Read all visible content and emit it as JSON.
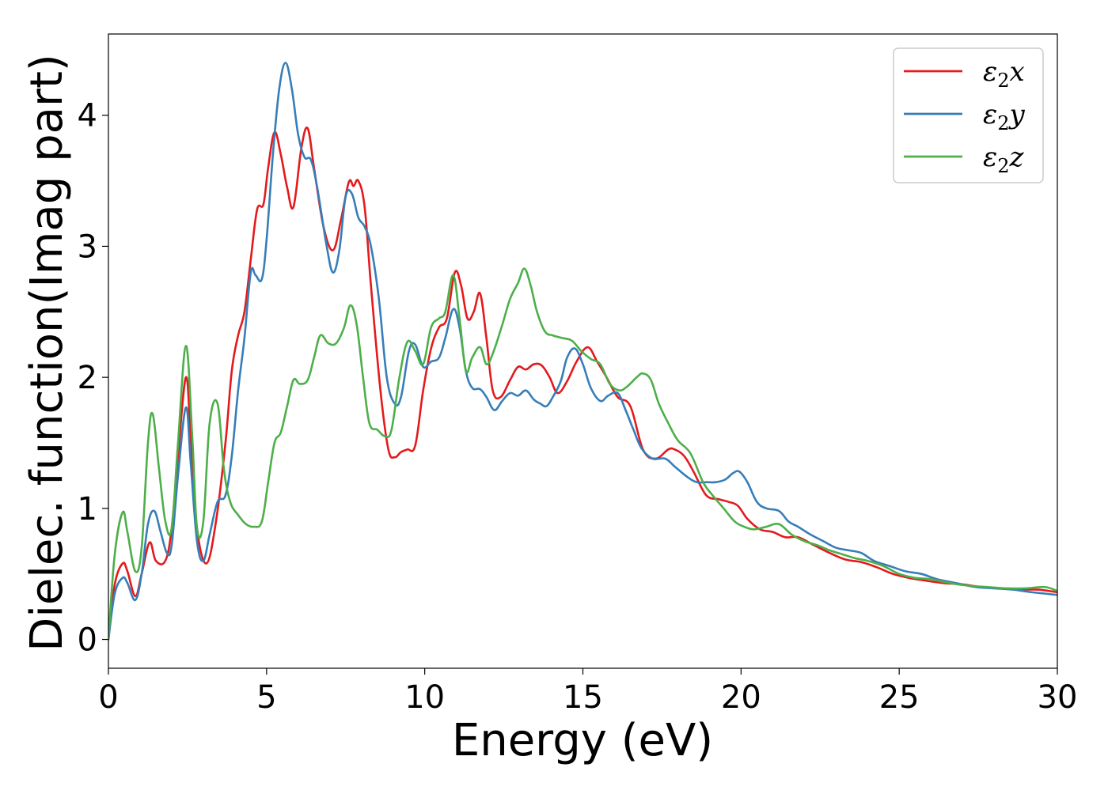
{
  "chart_data": {
    "type": "line",
    "title": "",
    "xlabel": "Energy (eV)",
    "ylabel": "Dielec. function(Imag part)",
    "xlim": [
      0,
      30
    ],
    "ylim": [
      -0.22,
      4.62
    ],
    "xticks": [
      0,
      5,
      10,
      15,
      20,
      25,
      30
    ],
    "xtick_labels": [
      "0",
      "5",
      "10",
      "15",
      "20",
      "25",
      "30"
    ],
    "yticks": [
      0,
      1,
      2,
      3,
      4
    ],
    "ytick_labels": [
      "0",
      "1",
      "2",
      "3",
      "4"
    ],
    "grid": false,
    "legend_position": "top-right",
    "series": [
      {
        "name": "ε2x",
        "legend_base": "ε",
        "legend_sub": "2",
        "legend_var": "x",
        "color": "#e41a1c",
        "x": [
          0,
          0.2,
          0.45,
          0.6,
          0.85,
          1.05,
          1.3,
          1.5,
          1.8,
          2.0,
          2.2,
          2.45,
          2.6,
          2.8,
          3.1,
          3.4,
          3.7,
          3.9,
          4.1,
          4.3,
          4.5,
          4.7,
          4.9,
          5.05,
          5.25,
          5.45,
          5.65,
          5.85,
          6.1,
          6.3,
          6.5,
          6.8,
          7.1,
          7.35,
          7.6,
          7.75,
          7.9,
          8.1,
          8.3,
          8.6,
          8.85,
          9.05,
          9.25,
          9.45,
          9.7,
          9.95,
          10.2,
          10.45,
          10.7,
          10.95,
          11.15,
          11.35,
          11.55,
          11.75,
          11.95,
          12.15,
          12.4,
          12.7,
          12.95,
          13.2,
          13.45,
          13.7,
          13.95,
          14.2,
          14.5,
          14.8,
          15.15,
          15.45,
          15.75,
          16.1,
          16.5,
          16.9,
          17.3,
          17.7,
          17.9,
          18.2,
          18.5,
          18.9,
          19.3,
          19.6,
          19.9,
          20.2,
          20.6,
          21.0,
          21.4,
          21.8,
          22.3,
          22.8,
          23.3,
          23.8,
          24.3,
          24.8,
          25.3,
          25.8,
          26.4,
          27.0,
          27.6,
          28.2,
          28.8,
          29.4,
          30.0
        ],
        "values": [
          0.0,
          0.42,
          0.58,
          0.52,
          0.33,
          0.5,
          0.74,
          0.6,
          0.6,
          0.85,
          1.4,
          2.0,
          1.55,
          0.85,
          0.58,
          0.9,
          1.5,
          2.05,
          2.32,
          2.5,
          2.9,
          3.28,
          3.32,
          3.6,
          3.87,
          3.7,
          3.45,
          3.3,
          3.75,
          3.9,
          3.6,
          3.15,
          2.97,
          3.2,
          3.49,
          3.46,
          3.5,
          3.3,
          2.7,
          1.9,
          1.45,
          1.39,
          1.43,
          1.45,
          1.48,
          1.9,
          2.22,
          2.38,
          2.45,
          2.8,
          2.7,
          2.45,
          2.5,
          2.64,
          2.3,
          1.9,
          1.85,
          1.98,
          2.08,
          2.06,
          2.1,
          2.09,
          2.0,
          1.88,
          1.97,
          2.12,
          2.23,
          2.12,
          2.0,
          1.85,
          1.78,
          1.45,
          1.38,
          1.45,
          1.45,
          1.4,
          1.28,
          1.1,
          1.07,
          1.05,
          1.02,
          0.92,
          0.84,
          0.82,
          0.78,
          0.78,
          0.72,
          0.66,
          0.61,
          0.59,
          0.55,
          0.5,
          0.47,
          0.45,
          0.43,
          0.42,
          0.4,
          0.39,
          0.38,
          0.38,
          0.36
        ]
      },
      {
        "name": "ε2y",
        "legend_base": "ε",
        "legend_sub": "2",
        "legend_var": "y",
        "color": "#377eb8",
        "x": [
          0,
          0.2,
          0.45,
          0.6,
          0.85,
          1.05,
          1.25,
          1.45,
          1.65,
          1.85,
          2.0,
          2.2,
          2.45,
          2.6,
          2.8,
          3.0,
          3.2,
          3.45,
          3.7,
          3.9,
          4.1,
          4.3,
          4.5,
          4.65,
          4.85,
          5.0,
          5.2,
          5.4,
          5.6,
          5.8,
          6.0,
          6.2,
          6.4,
          6.6,
          6.9,
          7.1,
          7.3,
          7.5,
          7.7,
          7.9,
          8.1,
          8.3,
          8.55,
          8.8,
          9.05,
          9.25,
          9.5,
          9.7,
          9.95,
          10.2,
          10.45,
          10.65,
          10.9,
          11.1,
          11.3,
          11.5,
          11.75,
          11.95,
          12.2,
          12.45,
          12.7,
          12.95,
          13.2,
          13.45,
          13.65,
          13.85,
          14.05,
          14.3,
          14.5,
          14.75,
          15.0,
          15.25,
          15.55,
          15.8,
          16.1,
          16.35,
          16.6,
          16.85,
          17.2,
          17.6,
          17.9,
          18.3,
          18.6,
          18.9,
          19.2,
          19.5,
          19.75,
          19.95,
          20.2,
          20.5,
          20.8,
          21.2,
          21.5,
          21.8,
          22.2,
          22.6,
          23.0,
          23.4,
          23.8,
          24.2,
          24.7,
          25.2,
          25.7,
          26.2,
          26.8,
          27.4,
          28.0,
          28.6,
          29.2,
          30.0
        ],
        "values": [
          0.0,
          0.35,
          0.47,
          0.43,
          0.3,
          0.5,
          0.88,
          0.98,
          0.82,
          0.66,
          0.72,
          1.25,
          1.77,
          1.35,
          0.75,
          0.6,
          0.8,
          1.05,
          1.1,
          1.4,
          1.9,
          2.3,
          2.8,
          2.78,
          2.75,
          3.05,
          3.7,
          4.2,
          4.4,
          4.2,
          3.85,
          3.68,
          3.66,
          3.45,
          3.0,
          2.8,
          2.97,
          3.38,
          3.4,
          3.22,
          3.15,
          3.0,
          2.6,
          2.0,
          1.8,
          1.85,
          2.2,
          2.25,
          2.08,
          2.12,
          2.15,
          2.3,
          2.52,
          2.38,
          2.05,
          1.92,
          1.91,
          1.85,
          1.75,
          1.82,
          1.88,
          1.86,
          1.9,
          1.83,
          1.8,
          1.78,
          1.85,
          1.97,
          2.15,
          2.22,
          2.1,
          1.92,
          1.82,
          1.86,
          1.88,
          1.75,
          1.6,
          1.46,
          1.38,
          1.38,
          1.32,
          1.24,
          1.2,
          1.2,
          1.2,
          1.22,
          1.27,
          1.28,
          1.2,
          1.05,
          1.0,
          0.98,
          0.9,
          0.86,
          0.8,
          0.75,
          0.7,
          0.68,
          0.66,
          0.6,
          0.56,
          0.52,
          0.5,
          0.46,
          0.43,
          0.4,
          0.39,
          0.38,
          0.36,
          0.34
        ]
      },
      {
        "name": "ε2z",
        "legend_base": "ε",
        "legend_sub": "2",
        "legend_var": "z",
        "color": "#4daf4a",
        "x": [
          0,
          0.2,
          0.45,
          0.6,
          0.85,
          1.05,
          1.25,
          1.4,
          1.6,
          1.8,
          2.0,
          2.2,
          2.45,
          2.65,
          2.8,
          3.0,
          3.2,
          3.45,
          3.65,
          3.85,
          4.1,
          4.35,
          4.6,
          4.85,
          5.05,
          5.25,
          5.45,
          5.65,
          5.85,
          6.05,
          6.3,
          6.5,
          6.7,
          6.95,
          7.2,
          7.45,
          7.65,
          7.85,
          8.05,
          8.25,
          8.5,
          8.75,
          8.95,
          9.2,
          9.45,
          9.7,
          9.95,
          10.2,
          10.45,
          10.65,
          10.9,
          11.1,
          11.3,
          11.5,
          11.75,
          11.95,
          12.15,
          12.45,
          12.7,
          12.95,
          13.15,
          13.35,
          13.55,
          13.8,
          14.05,
          14.35,
          14.65,
          14.95,
          15.25,
          15.55,
          15.85,
          16.15,
          16.4,
          16.7,
          16.9,
          17.15,
          17.4,
          17.7,
          18.0,
          18.4,
          18.8,
          19.1,
          19.45,
          19.8,
          20.1,
          20.4,
          20.8,
          21.2,
          21.6,
          22.0,
          22.4,
          22.8,
          23.2,
          23.6,
          24.0,
          24.5,
          25.0,
          25.5,
          26.0,
          26.6,
          27.2,
          27.8,
          28.4,
          29.0,
          29.6,
          30.0
        ],
        "values": [
          0.0,
          0.65,
          0.97,
          0.82,
          0.52,
          0.7,
          1.5,
          1.72,
          1.3,
          0.9,
          0.85,
          1.5,
          2.24,
          1.55,
          0.85,
          0.9,
          1.65,
          1.8,
          1.3,
          1.05,
          0.95,
          0.88,
          0.86,
          0.9,
          1.2,
          1.5,
          1.58,
          1.78,
          1.98,
          1.95,
          1.98,
          2.15,
          2.32,
          2.26,
          2.26,
          2.38,
          2.55,
          2.4,
          2.0,
          1.65,
          1.6,
          1.55,
          1.6,
          2.0,
          2.27,
          2.2,
          2.1,
          2.38,
          2.45,
          2.5,
          2.78,
          2.45,
          2.05,
          2.15,
          2.23,
          2.1,
          2.18,
          2.4,
          2.6,
          2.72,
          2.83,
          2.7,
          2.5,
          2.35,
          2.32,
          2.3,
          2.28,
          2.2,
          2.14,
          2.1,
          1.95,
          1.9,
          1.93,
          2.0,
          2.03,
          1.98,
          1.8,
          1.65,
          1.52,
          1.42,
          1.2,
          1.1,
          1.0,
          0.9,
          0.86,
          0.84,
          0.86,
          0.88,
          0.8,
          0.75,
          0.72,
          0.68,
          0.65,
          0.62,
          0.6,
          0.56,
          0.5,
          0.47,
          0.46,
          0.43,
          0.41,
          0.4,
          0.39,
          0.39,
          0.4,
          0.37
        ]
      }
    ]
  }
}
